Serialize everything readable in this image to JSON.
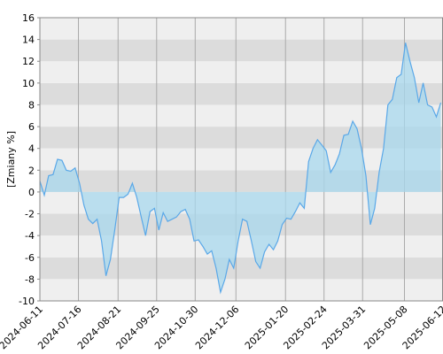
{
  "chart_data": {
    "type": "area",
    "y_label": "[Zmiany %]",
    "xlim": [
      "2024-06-11",
      "2025-06-12"
    ],
    "xticks": [
      "2024-06-11",
      "2024-07-16",
      "2024-08-21",
      "2024-09-25",
      "2024-10-30",
      "2024-12-06",
      "2025-01-20",
      "2025-02-24",
      "2025-03-31",
      "2025-05-08",
      "2025-06-12"
    ],
    "ylim": [
      -10,
      16
    ],
    "yticks": [
      -10,
      -8,
      -6,
      -4,
      -2,
      0,
      2,
      4,
      6,
      8,
      10,
      12,
      14,
      16
    ],
    "grid": true,
    "x": [
      "2024-06-11",
      "2024-06-15",
      "2024-06-19",
      "2024-06-23",
      "2024-06-27",
      "2024-07-01",
      "2024-07-05",
      "2024-07-09",
      "2024-07-13",
      "2024-07-17",
      "2024-07-21",
      "2024-07-25",
      "2024-07-29",
      "2024-08-02",
      "2024-08-06",
      "2024-08-10",
      "2024-08-14",
      "2024-08-18",
      "2024-08-22",
      "2024-08-26",
      "2024-08-30",
      "2024-09-03",
      "2024-09-07",
      "2024-09-11",
      "2024-09-15",
      "2024-09-19",
      "2024-09-23",
      "2024-09-27",
      "2024-10-01",
      "2024-10-05",
      "2024-10-09",
      "2024-10-13",
      "2024-10-17",
      "2024-10-21",
      "2024-10-25",
      "2024-10-29",
      "2024-11-02",
      "2024-11-06",
      "2024-11-10",
      "2024-11-14",
      "2024-11-18",
      "2024-11-22",
      "2024-11-26",
      "2024-11-30",
      "2024-12-04",
      "2024-12-08",
      "2024-12-12",
      "2024-12-16",
      "2024-12-20",
      "2024-12-24",
      "2024-12-28",
      "2025-01-01",
      "2025-01-05",
      "2025-01-09",
      "2025-01-13",
      "2025-01-17",
      "2025-01-21",
      "2025-01-25",
      "2025-01-29",
      "2025-02-02",
      "2025-02-06",
      "2025-02-10",
      "2025-02-14",
      "2025-02-18",
      "2025-02-22",
      "2025-02-26",
      "2025-03-02",
      "2025-03-06",
      "2025-03-10",
      "2025-03-14",
      "2025-03-18",
      "2025-03-22",
      "2025-03-26",
      "2025-03-30",
      "2025-04-03",
      "2025-04-07",
      "2025-04-11",
      "2025-04-15",
      "2025-04-19",
      "2025-04-23",
      "2025-04-27",
      "2025-05-01",
      "2025-05-05",
      "2025-05-09",
      "2025-05-13",
      "2025-05-17",
      "2025-05-21",
      "2025-05-25",
      "2025-05-29",
      "2025-06-02",
      "2025-06-06",
      "2025-06-10"
    ],
    "series": [
      {
        "color": "#5aa8e8",
        "fill": "#a8d8ee",
        "values": [
          1.0,
          -0.3,
          1.5,
          1.6,
          3.0,
          2.9,
          2.0,
          1.9,
          2.2,
          0.8,
          -1.2,
          -2.5,
          -2.9,
          -2.5,
          -4.5,
          -7.7,
          -6.2,
          -3.5,
          -0.5,
          -0.5,
          -0.2,
          0.8,
          -0.5,
          -2.3,
          -4,
          -1.8,
          -1.5,
          -3.5,
          -1.9,
          -2.7,
          -2.5,
          -2.3,
          -1.8,
          -1.6,
          -2.5,
          -4.5,
          -4.4,
          -5,
          -5.7,
          -5.4,
          -7,
          -9.2,
          -8,
          -6.2,
          -7,
          -4.5,
          -2.5,
          -2.7,
          -4.5,
          -6.4,
          -7,
          -5.5,
          -4.8,
          -5.3,
          -4.5,
          -3,
          -2.4,
          -2.5,
          -1.8,
          -1,
          -1.5,
          2.8,
          4,
          4.8,
          4.3,
          3.8,
          1.8,
          2.5,
          3.5,
          5.2,
          5.3,
          6.5,
          5.8,
          4,
          1.5,
          -3,
          -1.5,
          1.8,
          4,
          8,
          8.5,
          10.5,
          10.8,
          13.7,
          12,
          10.5,
          8.2,
          10,
          8,
          7.8,
          6.9,
          8.2
        ]
      }
    ]
  }
}
